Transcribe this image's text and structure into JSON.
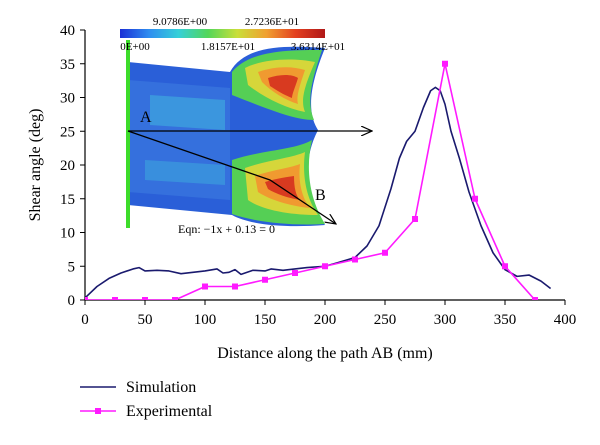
{
  "chart_data": {
    "type": "line",
    "title": "",
    "xlabel": "Distance along the path AB (mm)",
    "ylabel": "Shear angle (deg)",
    "xlim": [
      0,
      400
    ],
    "ylim": [
      0,
      40
    ],
    "x_ticks": [
      0,
      50,
      100,
      150,
      200,
      250,
      300,
      350,
      400
    ],
    "y_ticks": [
      0,
      5,
      10,
      15,
      20,
      25,
      30,
      35,
      40
    ],
    "grid": false,
    "legend_position": "bottom-left",
    "series": [
      {
        "name": "Simulation",
        "color": "#1a1a6e",
        "marker": "none",
        "points": [
          [
            0,
            0.3
          ],
          [
            10,
            2.0
          ],
          [
            20,
            3.2
          ],
          [
            30,
            4.0
          ],
          [
            40,
            4.6
          ],
          [
            45,
            4.8
          ],
          [
            50,
            4.3
          ],
          [
            60,
            4.4
          ],
          [
            70,
            4.3
          ],
          [
            80,
            3.9
          ],
          [
            90,
            4.1
          ],
          [
            100,
            4.3
          ],
          [
            110,
            4.6
          ],
          [
            115,
            4.0
          ],
          [
            120,
            4.1
          ],
          [
            125,
            4.5
          ],
          [
            130,
            3.8
          ],
          [
            140,
            4.4
          ],
          [
            150,
            4.3
          ],
          [
            155,
            4.6
          ],
          [
            165,
            4.4
          ],
          [
            175,
            4.6
          ],
          [
            185,
            4.8
          ],
          [
            200,
            5.0
          ],
          [
            210,
            5.5
          ],
          [
            225,
            6.3
          ],
          [
            235,
            8.0
          ],
          [
            245,
            11.0
          ],
          [
            255,
            16.5
          ],
          [
            262,
            21.0
          ],
          [
            268,
            23.5
          ],
          [
            275,
            25.0
          ],
          [
            282,
            28.5
          ],
          [
            288,
            31.0
          ],
          [
            292,
            31.5
          ],
          [
            296,
            31.0
          ],
          [
            300,
            29.0
          ],
          [
            305,
            25.0
          ],
          [
            312,
            21.0
          ],
          [
            320,
            16.0
          ],
          [
            330,
            11.0
          ],
          [
            340,
            7.0
          ],
          [
            350,
            4.5
          ],
          [
            360,
            3.5
          ],
          [
            370,
            3.7
          ],
          [
            380,
            2.8
          ],
          [
            388,
            1.7
          ]
        ]
      },
      {
        "name": "Experimental",
        "color": "#ff1aff",
        "marker": "square",
        "points": [
          [
            0,
            0
          ],
          [
            25,
            0
          ],
          [
            50,
            0
          ],
          [
            75,
            0
          ],
          [
            100,
            2.0
          ],
          [
            125,
            2.0
          ],
          [
            150,
            3.0
          ],
          [
            175,
            4.0
          ],
          [
            200,
            5.0
          ],
          [
            225,
            6.0
          ],
          [
            250,
            7.0
          ],
          [
            275,
            12.0
          ],
          [
            300,
            35.0
          ],
          [
            325,
            15.0
          ],
          [
            350,
            5.0
          ],
          [
            375,
            0
          ]
        ]
      }
    ],
    "inset": {
      "colorbar_ticks_top": [
        "9.0786E+00",
        "2.7236E+01"
      ],
      "colorbar_ticks_bottom": [
        "0E+00",
        "1.8157E+01",
        "3.6314E+01"
      ],
      "colorbar_colors": [
        "#1a2fd6",
        "#2f8ef0",
        "#35d0d8",
        "#52d65a",
        "#c9df3a",
        "#f0a030",
        "#e34020",
        "#b01818"
      ],
      "label_A": "A",
      "label_B": "B",
      "equation": "Eqn: −1x + 0.13 = 0"
    }
  }
}
